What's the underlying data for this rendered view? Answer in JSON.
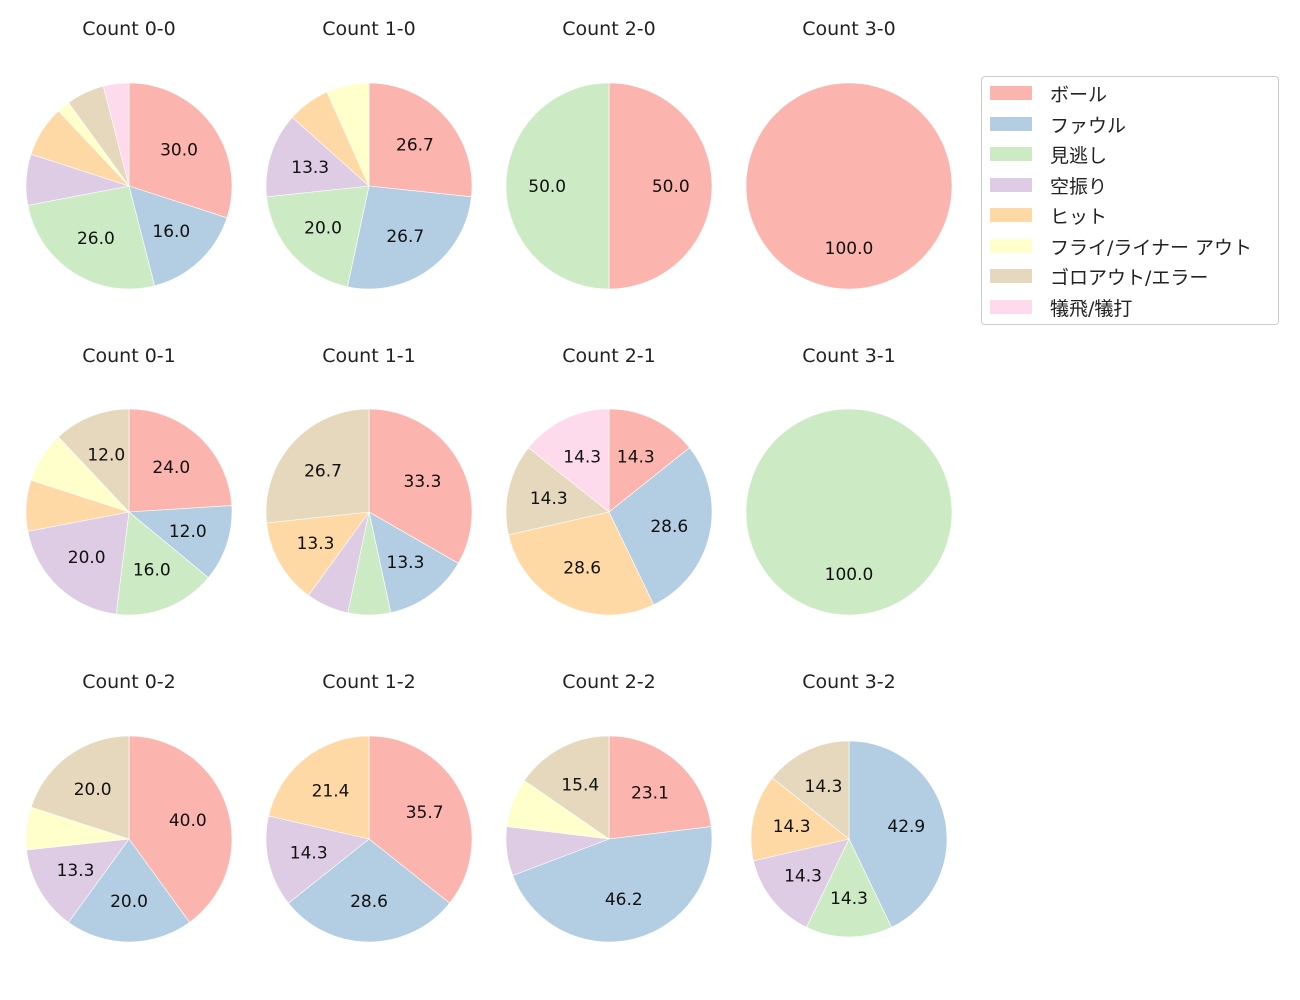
{
  "chart_data": {
    "type": "pie",
    "figure_layout": {
      "rows": 3,
      "cols": 4
    },
    "legend": {
      "position": "upper right",
      "entries": [
        {
          "label": "ボール",
          "color": "#fbb4ae"
        },
        {
          "label": "ファウル",
          "color": "#b3cde3"
        },
        {
          "label": "見逃し",
          "color": "#ccebc5"
        },
        {
          "label": "空振り",
          "color": "#decbe4"
        },
        {
          "label": "ヒット",
          "color": "#fed9a6"
        },
        {
          "label": "フライ/ライナー アウト",
          "color": "#ffffcc"
        },
        {
          "label": "ゴロアウト/エラー",
          "color": "#e5d8bd"
        },
        {
          "label": "犠飛/犠打",
          "color": "#fddaec"
        }
      ]
    },
    "categories": [
      "ボール",
      "ファウル",
      "見逃し",
      "空振り",
      "ヒット",
      "フライ/ライナー アウト",
      "ゴロアウト/エラー",
      "犠飛/犠打"
    ],
    "label_threshold_note": "Percentages below ~10% are not labeled",
    "subplots": [
      {
        "title": "Count 0-0",
        "row": 0,
        "col": 0,
        "values": [
          30.0,
          16.0,
          26.0,
          8.0,
          8.0,
          2.0,
          6.0,
          4.0
        ]
      },
      {
        "title": "Count 1-0",
        "row": 0,
        "col": 1,
        "values": [
          26.7,
          26.7,
          20.0,
          13.3,
          6.7,
          6.7,
          0,
          0
        ]
      },
      {
        "title": "Count 2-0",
        "row": 0,
        "col": 2,
        "values": [
          50.0,
          0,
          50.0,
          0,
          0,
          0,
          0,
          0
        ]
      },
      {
        "title": "Count 3-0",
        "row": 0,
        "col": 3,
        "values": [
          100.0,
          0,
          0,
          0,
          0,
          0,
          0,
          0
        ]
      },
      {
        "title": "Count 0-1",
        "row": 1,
        "col": 0,
        "values": [
          24.0,
          12.0,
          16.0,
          20.0,
          8.0,
          8.0,
          12.0,
          0
        ]
      },
      {
        "title": "Count 1-1",
        "row": 1,
        "col": 1,
        "values": [
          33.3,
          13.3,
          6.7,
          6.7,
          13.3,
          0,
          26.7,
          0
        ]
      },
      {
        "title": "Count 2-1",
        "row": 1,
        "col": 2,
        "values": [
          14.3,
          28.6,
          0,
          0,
          28.6,
          0,
          14.3,
          14.3
        ]
      },
      {
        "title": "Count 3-1",
        "row": 1,
        "col": 3,
        "values": [
          0,
          0,
          100.0,
          0,
          0,
          0,
          0,
          0
        ]
      },
      {
        "title": "Count 0-2",
        "row": 2,
        "col": 0,
        "values": [
          40.0,
          20.0,
          0,
          13.3,
          0,
          6.7,
          20.0,
          0
        ]
      },
      {
        "title": "Count 1-2",
        "row": 2,
        "col": 1,
        "values": [
          35.7,
          28.6,
          0,
          14.3,
          21.4,
          0,
          0,
          0
        ]
      },
      {
        "title": "Count 2-2",
        "row": 2,
        "col": 2,
        "values": [
          23.1,
          46.2,
          0,
          7.7,
          0,
          7.7,
          15.4,
          0
        ]
      },
      {
        "title": "Count 3-2",
        "row": 2,
        "col": 3,
        "values": [
          0,
          42.9,
          14.3,
          14.3,
          14.3,
          0,
          14.3,
          0
        ]
      }
    ]
  }
}
